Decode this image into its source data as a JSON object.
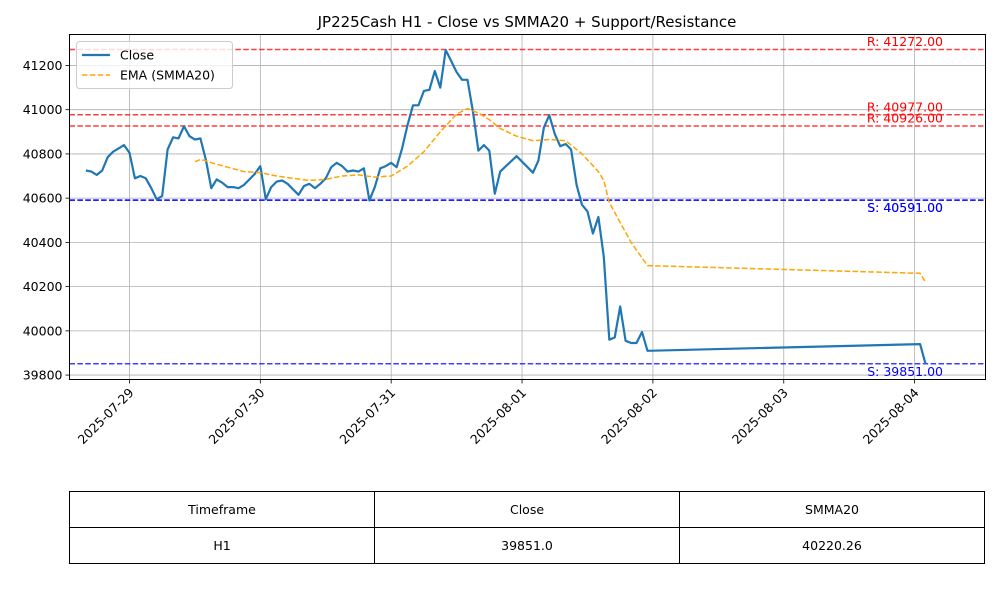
{
  "chart_data": {
    "type": "line",
    "title": "JP225Cash H1 - Close vs SMMA20 + Support/Resistance",
    "xlabel": "",
    "ylabel": "",
    "xlim": [
      "2025-07-28T13:00",
      "2025-08-04T13:00"
    ],
    "ylim": [
      39780,
      41340
    ],
    "grid": true,
    "legend_position": "top-left",
    "x_ticks": [
      "2025-07-29",
      "2025-07-30",
      "2025-07-31",
      "2025-08-01",
      "2025-08-02",
      "2025-08-03",
      "2025-08-04"
    ],
    "y_ticks": [
      39800,
      40000,
      40200,
      40400,
      40600,
      40800,
      41000,
      41200
    ],
    "series": [
      {
        "name": "Close",
        "color": "#1f77b4",
        "style": "solid",
        "points": [
          [
            "2025-07-28T16:00",
            40725
          ],
          [
            "2025-07-28T17:00",
            40720
          ],
          [
            "2025-07-28T18:00",
            40705
          ],
          [
            "2025-07-28T19:00",
            40725
          ],
          [
            "2025-07-28T20:00",
            40785
          ],
          [
            "2025-07-28T21:00",
            40810
          ],
          [
            "2025-07-28T22:00",
            40825
          ],
          [
            "2025-07-28T23:00",
            40840
          ],
          [
            "2025-07-29T00:00",
            40805
          ],
          [
            "2025-07-29T01:00",
            40690
          ],
          [
            "2025-07-29T02:00",
            40700
          ],
          [
            "2025-07-29T03:00",
            40690
          ],
          [
            "2025-07-29T04:00",
            40645
          ],
          [
            "2025-07-29T05:00",
            40595
          ],
          [
            "2025-07-29T06:00",
            40610
          ],
          [
            "2025-07-29T07:00",
            40820
          ],
          [
            "2025-07-29T08:00",
            40875
          ],
          [
            "2025-07-29T09:00",
            40870
          ],
          [
            "2025-07-29T10:00",
            40925
          ],
          [
            "2025-07-29T11:00",
            40880
          ],
          [
            "2025-07-29T12:00",
            40865
          ],
          [
            "2025-07-29T13:00",
            40870
          ],
          [
            "2025-07-29T14:00",
            40775
          ],
          [
            "2025-07-29T15:00",
            40645
          ],
          [
            "2025-07-29T16:00",
            40685
          ],
          [
            "2025-07-29T17:00",
            40670
          ],
          [
            "2025-07-29T18:00",
            40650
          ],
          [
            "2025-07-29T19:00",
            40650
          ],
          [
            "2025-07-29T20:00",
            40645
          ],
          [
            "2025-07-29T21:00",
            40660
          ],
          [
            "2025-07-29T22:00",
            40685
          ],
          [
            "2025-07-29T23:00",
            40710
          ],
          [
            "2025-07-30T00:00",
            40745
          ],
          [
            "2025-07-30T01:00",
            40595
          ],
          [
            "2025-07-30T02:00",
            40650
          ],
          [
            "2025-07-30T03:00",
            40675
          ],
          [
            "2025-07-30T04:00",
            40680
          ],
          [
            "2025-07-30T05:00",
            40665
          ],
          [
            "2025-07-30T06:00",
            40640
          ],
          [
            "2025-07-30T07:00",
            40615
          ],
          [
            "2025-07-30T08:00",
            40655
          ],
          [
            "2025-07-30T09:00",
            40665
          ],
          [
            "2025-07-30T10:00",
            40645
          ],
          [
            "2025-07-30T11:00",
            40665
          ],
          [
            "2025-07-30T12:00",
            40690
          ],
          [
            "2025-07-30T13:00",
            40740
          ],
          [
            "2025-07-30T14:00",
            40760
          ],
          [
            "2025-07-30T15:00",
            40745
          ],
          [
            "2025-07-30T16:00",
            40720
          ],
          [
            "2025-07-30T17:00",
            40725
          ],
          [
            "2025-07-30T18:00",
            40720
          ],
          [
            "2025-07-30T19:00",
            40735
          ],
          [
            "2025-07-30T20:00",
            40590
          ],
          [
            "2025-07-30T21:00",
            40650
          ],
          [
            "2025-07-30T22:00",
            40735
          ],
          [
            "2025-07-30T23:00",
            40745
          ],
          [
            "2025-07-31T00:00",
            40760
          ],
          [
            "2025-07-31T01:00",
            40740
          ],
          [
            "2025-07-31T02:00",
            40825
          ],
          [
            "2025-07-31T03:00",
            40930
          ],
          [
            "2025-07-31T04:00",
            41020
          ],
          [
            "2025-07-31T05:00",
            41020
          ],
          [
            "2025-07-31T06:00",
            41085
          ],
          [
            "2025-07-31T07:00",
            41090
          ],
          [
            "2025-07-31T08:00",
            41175
          ],
          [
            "2025-07-31T09:00",
            41100
          ],
          [
            "2025-07-31T10:00",
            41270
          ],
          [
            "2025-07-31T11:00",
            41220
          ],
          [
            "2025-07-31T12:00",
            41170
          ],
          [
            "2025-07-31T13:00",
            41135
          ],
          [
            "2025-07-31T14:00",
            41135
          ],
          [
            "2025-07-31T15:00",
            40990
          ],
          [
            "2025-07-31T16:00",
            40815
          ],
          [
            "2025-07-31T17:00",
            40840
          ],
          [
            "2025-07-31T18:00",
            40815
          ],
          [
            "2025-07-31T19:00",
            40620
          ],
          [
            "2025-07-31T20:00",
            40720
          ],
          [
            "2025-07-31T23:00",
            40790
          ],
          [
            "2025-08-01T02:00",
            40715
          ],
          [
            "2025-08-01T03:00",
            40770
          ],
          [
            "2025-08-01T04:00",
            40920
          ],
          [
            "2025-08-01T05:00",
            40975
          ],
          [
            "2025-08-01T06:00",
            40890
          ],
          [
            "2025-08-01T07:00",
            40835
          ],
          [
            "2025-08-01T08:00",
            40845
          ],
          [
            "2025-08-01T09:00",
            40820
          ],
          [
            "2025-08-01T10:00",
            40660
          ],
          [
            "2025-08-01T11:00",
            40570
          ],
          [
            "2025-08-01T12:00",
            40540
          ],
          [
            "2025-08-01T13:00",
            40440
          ],
          [
            "2025-08-01T14:00",
            40515
          ],
          [
            "2025-08-01T15:00",
            40335
          ],
          [
            "2025-08-01T16:00",
            39960
          ],
          [
            "2025-08-01T17:00",
            39970
          ],
          [
            "2025-08-01T18:00",
            40110
          ],
          [
            "2025-08-01T19:00",
            39955
          ],
          [
            "2025-08-01T20:00",
            39945
          ],
          [
            "2025-08-01T21:00",
            39945
          ],
          [
            "2025-08-01T22:00",
            39995
          ],
          [
            "2025-08-01T23:00",
            39910
          ],
          [
            "2025-08-04T01:00",
            39940
          ],
          [
            "2025-08-04T02:00",
            39851
          ]
        ]
      },
      {
        "name": "EMA (SMMA20)",
        "color": "orange",
        "style": "dashed",
        "points": [
          [
            "2025-07-29T12:00",
            40765
          ],
          [
            "2025-07-29T13:00",
            40775
          ],
          [
            "2025-07-29T14:00",
            40770
          ],
          [
            "2025-07-29T15:00",
            40760
          ],
          [
            "2025-07-29T18:00",
            40740
          ],
          [
            "2025-07-29T21:00",
            40720
          ],
          [
            "2025-07-30T00:00",
            40715
          ],
          [
            "2025-07-30T03:00",
            40700
          ],
          [
            "2025-07-30T06:00",
            40690
          ],
          [
            "2025-07-30T09:00",
            40680
          ],
          [
            "2025-07-30T12:00",
            40685
          ],
          [
            "2025-07-30T15:00",
            40700
          ],
          [
            "2025-07-30T18:00",
            40705
          ],
          [
            "2025-07-30T21:00",
            40695
          ],
          [
            "2025-07-31T00:00",
            40700
          ],
          [
            "2025-07-31T03:00",
            40745
          ],
          [
            "2025-07-31T06:00",
            40810
          ],
          [
            "2025-07-31T09:00",
            40900
          ],
          [
            "2025-07-31T12:00",
            40980
          ],
          [
            "2025-07-31T14:00",
            41005
          ],
          [
            "2025-07-31T16:00",
            40985
          ],
          [
            "2025-07-31T18:00",
            40955
          ],
          [
            "2025-07-31T20:00",
            40915
          ],
          [
            "2025-07-31T23:00",
            40880
          ],
          [
            "2025-08-01T02:00",
            40860
          ],
          [
            "2025-08-01T05:00",
            40865
          ],
          [
            "2025-08-01T08:00",
            40860
          ],
          [
            "2025-08-01T11:00",
            40800
          ],
          [
            "2025-08-01T14:00",
            40720
          ],
          [
            "2025-08-01T15:00",
            40680
          ],
          [
            "2025-08-01T16:00",
            40580
          ],
          [
            "2025-08-01T18:00",
            40490
          ],
          [
            "2025-08-01T20:00",
            40400
          ],
          [
            "2025-08-01T22:00",
            40330
          ],
          [
            "2025-08-01T23:00",
            40295
          ],
          [
            "2025-08-04T01:00",
            40260
          ],
          [
            "2025-08-04T02:00",
            40220.26
          ]
        ]
      }
    ],
    "levels": [
      {
        "kind": "resistance",
        "value": 41272.0,
        "label": "R: 41272.00",
        "color": "red"
      },
      {
        "kind": "resistance",
        "value": 40977.0,
        "label": "R: 40977.00",
        "color": "red"
      },
      {
        "kind": "resistance",
        "value": 40926.0,
        "label": "R: 40926.00",
        "color": "red"
      },
      {
        "kind": "support",
        "value": 40591.0,
        "label": "S: 40591.00",
        "color": "blue"
      },
      {
        "kind": "support",
        "value": 40591.0,
        "label": "S: 40591.00",
        "color": "blue"
      },
      {
        "kind": "support",
        "value": 39851.0,
        "label": "S: 39851.00",
        "color": "blue"
      }
    ]
  },
  "table": {
    "headers": [
      "Timeframe",
      "Close",
      "SMMA20"
    ],
    "rows": [
      [
        "H1",
        "39851.0",
        "40220.26"
      ]
    ]
  }
}
